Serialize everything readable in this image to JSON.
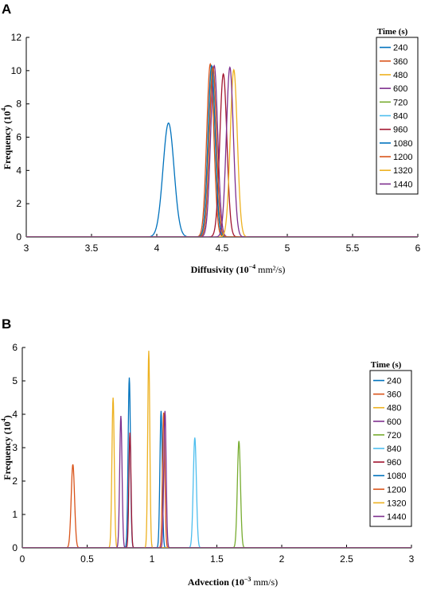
{
  "panel_labels": {
    "a": "A",
    "b": "B"
  },
  "series_colors": [
    "#0072BD",
    "#D95319",
    "#EDB120",
    "#7E2F8E",
    "#77AC30",
    "#4DBEEE",
    "#A2142F",
    "#0072BD",
    "#D95319",
    "#EDB120",
    "#7E2F8E"
  ],
  "chart_data": [
    {
      "type": "line",
      "panel": "A",
      "xlabel_main": "Diffusivity (10",
      "xlabel_exp": "−4",
      "xlabel_unit": " mm²/s)",
      "ylabel_main": "Frequency (10",
      "ylabel_exp": "4",
      "ylabel_end": ")",
      "xlim": [
        3,
        6
      ],
      "ylim": [
        0,
        12
      ],
      "xticks": [
        "3",
        "3.5",
        "4",
        "4.5",
        "5",
        "5.5",
        "6"
      ],
      "yticks": [
        "0",
        "2",
        "4",
        "6",
        "8",
        "10",
        "12"
      ],
      "grid": false,
      "legend_title": "Time (s)",
      "legend_position": "top-right",
      "series": [
        {
          "name": "240",
          "mu": 4.09,
          "sigma": 0.042,
          "peak": 6.85
        },
        {
          "name": "360",
          "mu": 4.41,
          "sigma": 0.027,
          "peak": 10.4
        },
        {
          "name": "480",
          "mu": 4.43,
          "sigma": 0.027,
          "peak": 10.2
        },
        {
          "name": "600",
          "mu": 4.44,
          "sigma": 0.027,
          "peak": 10.3
        },
        {
          "name": "720",
          "mu": 4.42,
          "sigma": 0.027,
          "peak": 10.1
        },
        {
          "name": "840",
          "mu": 4.43,
          "sigma": 0.027,
          "peak": 10.2
        },
        {
          "name": "960",
          "mu": 4.51,
          "sigma": 0.027,
          "peak": 9.8
        },
        {
          "name": "1080",
          "mu": 4.42,
          "sigma": 0.027,
          "peak": 10.3
        },
        {
          "name": "1200",
          "mu": 4.43,
          "sigma": 0.027,
          "peak": 10.2
        },
        {
          "name": "1320",
          "mu": 4.59,
          "sigma": 0.027,
          "peak": 10.05
        },
        {
          "name": "1440",
          "mu": 4.56,
          "sigma": 0.027,
          "peak": 10.2
        }
      ]
    },
    {
      "type": "line",
      "panel": "B",
      "xlabel_main": "Advection (10",
      "xlabel_exp": "−3",
      "xlabel_unit": " mm/s)",
      "ylabel_main": "Frequency (10",
      "ylabel_exp": "4",
      "ylabel_end": ")",
      "xlim": [
        0,
        3
      ],
      "ylim": [
        0,
        6
      ],
      "xticks": [
        "0",
        "0.5",
        "1",
        "1.5",
        "2",
        "2.5",
        "3"
      ],
      "yticks": [
        "0",
        "1",
        "2",
        "3",
        "4",
        "5",
        "6"
      ],
      "grid": false,
      "legend_title": "Time (s)",
      "legend_position": "top-right",
      "series": [
        {
          "name": "240",
          "mu": 0.825,
          "sigma": 0.009,
          "peak": 5.1
        },
        {
          "name": "360",
          "mu": 0.39,
          "sigma": 0.013,
          "peak": 2.5
        },
        {
          "name": "480",
          "mu": 0.7,
          "sigma": 0.009,
          "peak": 4.5
        },
        {
          "name": "600",
          "mu": 0.76,
          "sigma": 0.009,
          "peak": 3.95
        },
        {
          "name": "720",
          "mu": 1.67,
          "sigma": 0.012,
          "peak": 3.2
        },
        {
          "name": "840",
          "mu": 1.33,
          "sigma": 0.012,
          "peak": 3.3
        },
        {
          "name": "960",
          "mu": 0.83,
          "sigma": 0.008,
          "peak": 3.45
        },
        {
          "name": "1080",
          "mu": 1.07,
          "sigma": 0.009,
          "peak": 4.1
        },
        {
          "name": "1200",
          "mu": 1.09,
          "sigma": 0.009,
          "peak": 4.05
        },
        {
          "name": "1320",
          "mu": 0.975,
          "sigma": 0.008,
          "peak": 5.9
        },
        {
          "name": "1440",
          "mu": 1.1,
          "sigma": 0.009,
          "peak": 4.1
        }
      ]
    }
  ]
}
